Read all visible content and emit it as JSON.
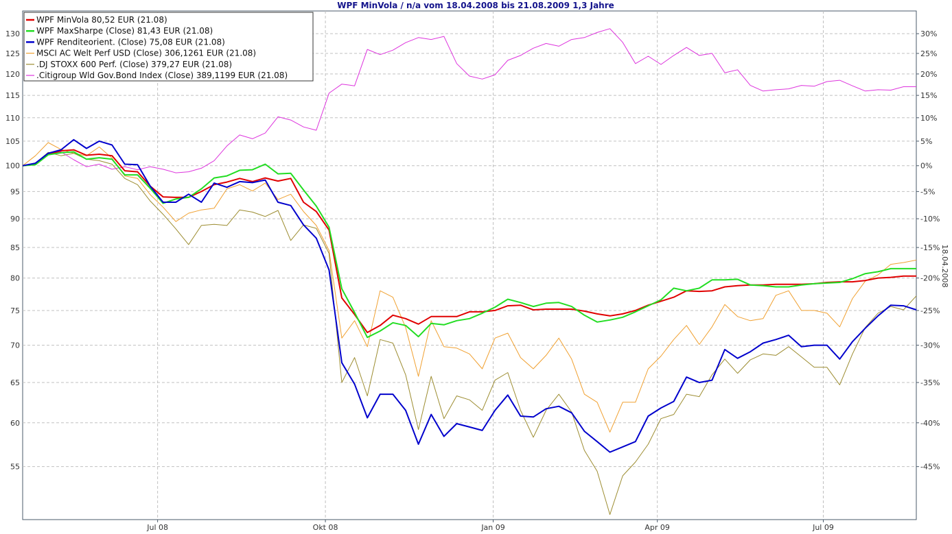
{
  "chart_data": {
    "type": "line",
    "title": "WPF MinVola / n/a vom 18.04.2008 bis 21.08.2009 1,3 Jahre",
    "y_log_scale": true,
    "ylim": [
      49.5,
      136
    ],
    "yticks_left": [
      55,
      60,
      65,
      70,
      75,
      80,
      85,
      90,
      95,
      100,
      105,
      110,
      115,
      120,
      125,
      130
    ],
    "ytick_labels_left": [
      "55",
      "60",
      "65",
      "70",
      "75",
      "80",
      "85",
      "90",
      "95",
      "100",
      "105",
      "110",
      "115",
      "120",
      "125",
      "130"
    ],
    "yticks_right_pct": [
      -45,
      -40,
      -35,
      -30,
      -25,
      -20,
      -15,
      -10,
      -5,
      0,
      5,
      10,
      15,
      20,
      25,
      30
    ],
    "ytick_labels_right": [
      "-45%",
      "-40%",
      "-35%",
      "-30%",
      "-25%",
      "-20%",
      "-15%",
      "-10%",
      "-5%",
      "0%",
      "5%",
      "10%",
      "15%",
      "20%",
      "25%",
      "30%"
    ],
    "right_axis_label": "18.04.2008",
    "xlim": [
      "2008-04-18",
      "2009-08-21"
    ],
    "x_tick_dates": [
      "2008-07-01",
      "2008-10-01",
      "2009-01-01",
      "2009-04-01",
      "2009-07-01"
    ],
    "x_tick_labels": [
      "Jul 08",
      "Okt 08",
      "Jan 09",
      "Apr 09",
      "Jul 09"
    ],
    "grid": true,
    "legend_position": "top-left",
    "x": [
      "2008-04-18",
      "2008-04-25",
      "2008-05-02",
      "2008-05-09",
      "2008-05-16",
      "2008-05-23",
      "2008-05-30",
      "2008-06-06",
      "2008-06-13",
      "2008-06-20",
      "2008-06-27",
      "2008-07-04",
      "2008-07-11",
      "2008-07-18",
      "2008-07-25",
      "2008-08-01",
      "2008-08-08",
      "2008-08-15",
      "2008-08-22",
      "2008-08-29",
      "2008-09-05",
      "2008-09-12",
      "2008-09-19",
      "2008-09-26",
      "2008-10-03",
      "2008-10-10",
      "2008-10-17",
      "2008-10-24",
      "2008-10-31",
      "2008-11-07",
      "2008-11-14",
      "2008-11-21",
      "2008-11-28",
      "2008-12-05",
      "2008-12-12",
      "2008-12-19",
      "2008-12-26",
      "2009-01-02",
      "2009-01-09",
      "2009-01-16",
      "2009-01-23",
      "2009-01-30",
      "2009-02-06",
      "2009-02-13",
      "2009-02-20",
      "2009-02-27",
      "2009-03-06",
      "2009-03-13",
      "2009-03-20",
      "2009-03-27",
      "2009-04-03",
      "2009-04-10",
      "2009-04-17",
      "2009-04-24",
      "2009-05-01",
      "2009-05-08",
      "2009-05-15",
      "2009-05-22",
      "2009-05-29",
      "2009-06-05",
      "2009-06-12",
      "2009-06-19",
      "2009-06-26",
      "2009-07-03",
      "2009-07-10",
      "2009-07-17",
      "2009-07-24",
      "2009-07-31",
      "2009-08-07",
      "2009-08-14",
      "2009-08-21"
    ],
    "series": [
      {
        "name": "WPF MinVola 80,52 EUR (21.08)",
        "color": "#e00000",
        "width": 2,
        "values": [
          100.0,
          100.3,
          102.3,
          103.0,
          103.2,
          102.1,
          102.3,
          102.0,
          99.0,
          98.8,
          96.0,
          94.0,
          93.9,
          93.9,
          95.0,
          96.3,
          96.8,
          97.5,
          96.9,
          97.6,
          97.0,
          97.5,
          93.0,
          91.3,
          88.0,
          76.9,
          74.4,
          71.8,
          72.8,
          74.3,
          73.8,
          73.0,
          74.1,
          74.1,
          74.1,
          74.8,
          74.8,
          75.0,
          75.7,
          75.8,
          75.1,
          75.2,
          75.2,
          75.2,
          74.9,
          74.5,
          74.2,
          74.5,
          75.0,
          75.8,
          76.4,
          77.0,
          78.0,
          77.9,
          78.0,
          78.6,
          78.8,
          78.9,
          78.9,
          79.0,
          79.0,
          79.0,
          79.1,
          79.3,
          79.4,
          79.4,
          79.6,
          80.0,
          80.1,
          80.3,
          80.3
        ]
      },
      {
        "name": "WPF MaxSharpe (Close) 81,43 EUR (21.08)",
        "color": "#22dd22",
        "width": 2,
        "values": [
          100.0,
          100.2,
          102.2,
          102.6,
          102.8,
          101.3,
          101.6,
          101.3,
          98.2,
          98.2,
          95.6,
          92.8,
          93.6,
          93.9,
          95.5,
          97.6,
          98.0,
          99.1,
          99.2,
          100.3,
          98.4,
          98.5,
          95.3,
          92.3,
          88.5,
          78.3,
          74.7,
          71.1,
          72.0,
          73.2,
          72.8,
          71.2,
          73.1,
          72.9,
          73.5,
          73.8,
          74.6,
          75.5,
          76.7,
          76.2,
          75.6,
          76.1,
          76.2,
          75.6,
          74.3,
          73.3,
          73.6,
          74.0,
          74.8,
          75.7,
          76.6,
          78.4,
          78.0,
          78.4,
          79.7,
          79.7,
          79.8,
          78.9,
          78.8,
          78.6,
          78.6,
          78.9,
          79.1,
          79.2,
          79.3,
          79.9,
          80.7,
          81.0,
          81.5,
          81.5,
          81.5
        ]
      },
      {
        "name": "WPF Renditeorient. (Close) 75,08 EUR (21.08)",
        "color": "#0000cc",
        "width": 2,
        "values": [
          100.0,
          100.5,
          102.5,
          103.2,
          105.3,
          103.5,
          105.0,
          104.2,
          100.3,
          100.2,
          96.0,
          93.0,
          93.0,
          94.5,
          93.0,
          96.6,
          95.8,
          96.9,
          96.7,
          97.2,
          93.0,
          92.4,
          88.9,
          86.6,
          81.3,
          67.6,
          64.8,
          60.6,
          63.5,
          63.5,
          61.5,
          57.5,
          61.0,
          58.4,
          59.9,
          59.5,
          59.1,
          61.5,
          63.4,
          60.8,
          60.7,
          61.7,
          62.0,
          61.2,
          59.0,
          57.8,
          56.6,
          57.2,
          57.8,
          60.8,
          61.8,
          62.6,
          65.7,
          65.0,
          65.3,
          69.4,
          68.2,
          69.1,
          70.3,
          70.8,
          71.4,
          69.8,
          70.0,
          70.0,
          68.1,
          70.5,
          72.4,
          74.2,
          75.8,
          75.7,
          75.1
        ]
      },
      {
        "name": "MSCI AC Welt Perf USD (Close) 306,1261 EUR (21.08)",
        "color": "#f0a030",
        "width": 1,
        "values": [
          100.0,
          102.0,
          104.7,
          103.3,
          102.5,
          102.0,
          103.8,
          101.5,
          98.0,
          97.5,
          94.4,
          92.1,
          89.5,
          91.0,
          91.6,
          91.9,
          95.5,
          96.3,
          95.1,
          96.6,
          93.5,
          94.5,
          91.3,
          88.8,
          84.5,
          71.0,
          73.5,
          69.8,
          78.0,
          77.0,
          72.5,
          65.8,
          73.5,
          69.8,
          69.6,
          68.8,
          66.8,
          71.0,
          71.7,
          68.3,
          66.8,
          68.6,
          71.0,
          68.1,
          63.5,
          62.5,
          58.9,
          62.5,
          62.5,
          66.8,
          68.5,
          70.8,
          72.8,
          70.1,
          72.6,
          75.9,
          74.1,
          73.5,
          73.8,
          77.3,
          78.0,
          75.0,
          75.0,
          74.6,
          72.6,
          76.8,
          79.5,
          80.5,
          82.2,
          82.5,
          82.9
        ]
      },
      {
        "name": ".DJ STOXX 600 Perf. (Close) 379,27 EUR (21.08)",
        "color": "#9c8c30",
        "width": 1,
        "values": [
          100.0,
          100.5,
          102.7,
          102.0,
          102.5,
          101.3,
          101.0,
          100.3,
          97.5,
          96.3,
          93.2,
          90.8,
          88.2,
          85.5,
          88.8,
          89.0,
          88.8,
          91.6,
          91.2,
          90.4,
          91.5,
          86.2,
          88.9,
          88.3,
          84.0,
          65.0,
          68.3,
          63.3,
          70.8,
          70.3,
          66.0,
          59.2,
          65.8,
          60.5,
          63.3,
          62.8,
          61.5,
          65.3,
          66.3,
          61.5,
          58.3,
          61.5,
          63.5,
          61.3,
          56.8,
          54.5,
          50.0,
          54.0,
          55.5,
          57.5,
          60.5,
          61.0,
          63.5,
          63.2,
          66.0,
          68.1,
          66.2,
          68.0,
          68.8,
          68.6,
          69.8,
          68.4,
          67.0,
          67.0,
          64.7,
          68.8,
          72.5,
          74.6,
          75.6,
          75.1,
          77.2
        ]
      },
      {
        "name": ".Citigroup Wld Gov.Bond Index (Close) 389,1199 EUR (21.08)",
        "color": "#dd33dd",
        "width": 1,
        "values": [
          100.0,
          100.2,
          102.2,
          102.8,
          101.2,
          99.8,
          100.3,
          99.3,
          99.8,
          99.2,
          99.8,
          99.3,
          98.6,
          98.8,
          99.5,
          101.0,
          104.0,
          106.3,
          105.5,
          106.7,
          110.2,
          109.5,
          108.0,
          107.3,
          115.5,
          117.6,
          117.2,
          126.0,
          124.7,
          125.8,
          127.7,
          129.0,
          128.5,
          129.3,
          122.5,
          119.5,
          118.8,
          119.8,
          123.3,
          124.5,
          126.3,
          127.5,
          126.8,
          128.5,
          129.0,
          130.3,
          131.3,
          127.8,
          122.5,
          124.3,
          122.3,
          124.5,
          126.5,
          124.5,
          125.0,
          120.3,
          121.0,
          117.3,
          116.0,
          116.3,
          116.5,
          117.3,
          117.1,
          118.2,
          118.5,
          117.2,
          116.0,
          116.3,
          116.2,
          117.0,
          117.0
        ]
      }
    ]
  }
}
